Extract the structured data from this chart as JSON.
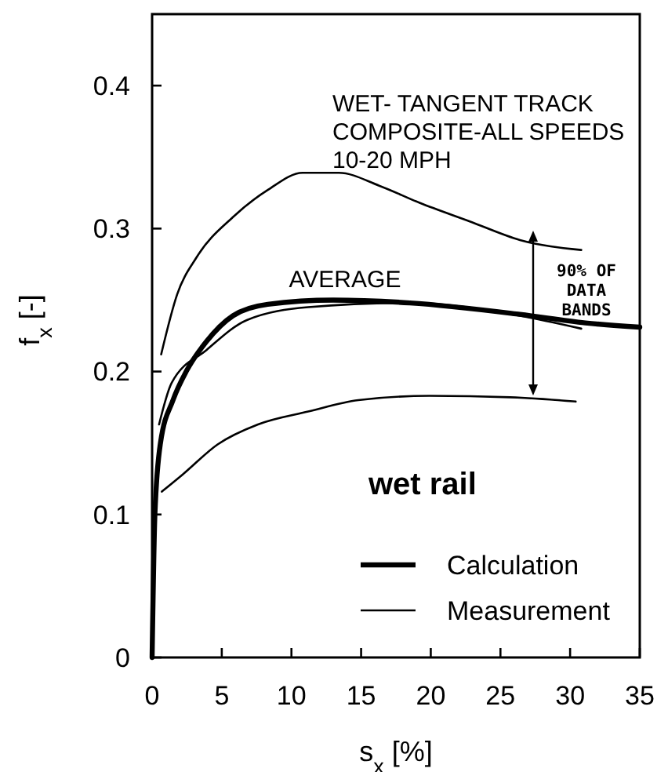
{
  "chart_data": {
    "type": "line",
    "xlabel": "s$_{x}$ [%]",
    "ylabel": "f$_{x}$ [-]",
    "legend_title": "wet rail",
    "legend": "bottom right",
    "grid": false,
    "line_style": "solid",
    "xlim": [
      0,
      35
    ],
    "xticks": [
      0,
      5,
      10,
      15,
      20,
      25,
      30,
      35
    ],
    "ylim": [
      0,
      0.45
    ],
    "yticks": [
      0,
      0.1,
      0.2,
      0.3,
      0.4
    ],
    "series": [
      {
        "name": "Calculation",
        "color": "#000000",
        "x": [
          0,
          0.2,
          0.6,
          1.5,
          2.5,
          3.9,
          5.8,
          8.3,
          13,
          18.5,
          26.4,
          31.1,
          35
        ],
        "values": [
          0,
          0.1,
          0.15,
          0.18,
          0.201,
          0.221,
          0.239,
          0.247,
          0.25,
          0.248,
          0.24,
          0.234,
          0.231
        ]
      },
      {
        "name": "Measurement",
        "color": "#000000",
        "x": [
          0.5,
          1.4,
          3.9,
          6.8,
          11.2,
          18.5,
          26.4,
          30.8
        ],
        "values": [
          0.163,
          0.192,
          0.215,
          0.236,
          0.245,
          0.248,
          0.239,
          0.23
        ]
      },
      {
        "color": "#000000",
        "x": [
          0.65,
          1.8,
          3.2,
          5.8,
          8.3,
          10.8,
          13.4,
          16.3,
          19.2,
          22.8,
          26.4,
          30.8
        ],
        "values": [
          0.212,
          0.254,
          0.28,
          0.308,
          0.327,
          0.339,
          0.339,
          0.33,
          0.318,
          0.305,
          0.292,
          0.285
        ]
      },
      {
        "color": "#000000",
        "x": [
          0.7,
          2.2,
          4.7,
          7.6,
          11.2,
          14.8,
          19.9,
          25.7,
          30.4
        ],
        "values": [
          0.116,
          0.128,
          0.149,
          0.163,
          0.172,
          0.18,
          0.183,
          0.182,
          0.179
        ]
      }
    ],
    "annotations": [
      "WET- TANGENT TRACK\nCOMPOSITE-ALL SPEEDS\n10-20 MPH",
      "AVERAGE",
      "90% OF\nDATA\nBANDS"
    ]
  }
}
